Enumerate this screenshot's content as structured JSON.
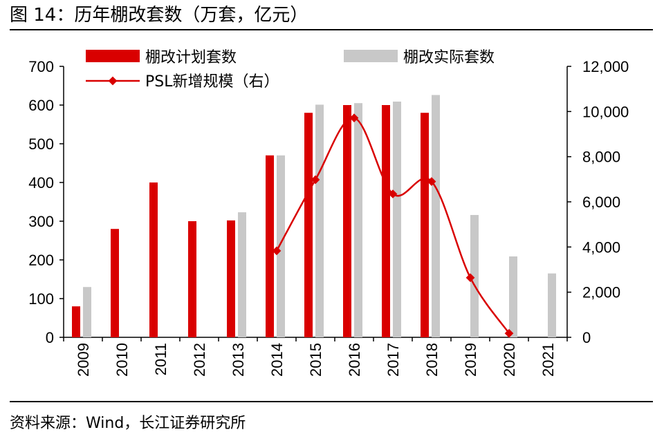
{
  "header": {
    "title": "图 14：历年棚改套数（万套，亿元）"
  },
  "footer": {
    "source": "资料来源：Wind，长江证券研究所"
  },
  "colors": {
    "plan": "#D90000",
    "actual": "#C8C8C8",
    "psl": "#D90000",
    "axis": "#000000"
  },
  "chart_data": {
    "type": "bar",
    "categories": [
      "2009",
      "2010",
      "2011",
      "2012",
      "2013",
      "2014",
      "2015",
      "2016",
      "2017",
      "2018",
      "2019",
      "2020",
      "2021"
    ],
    "series": [
      {
        "name": "棚改计划套数",
        "type": "bar",
        "axis": "left",
        "values": [
          80,
          280,
          400,
          300,
          302,
          470,
          580,
          600,
          600,
          580,
          null,
          null,
          null
        ]
      },
      {
        "name": "棚改实际套数",
        "type": "bar",
        "axis": "left",
        "values": [
          130,
          null,
          null,
          null,
          323,
          470,
          601,
          605,
          609,
          626,
          316,
          209,
          165
        ]
      },
      {
        "name": "PSL新增规模（右）",
        "type": "line",
        "axis": "right",
        "smooth": true,
        "values": [
          null,
          null,
          null,
          null,
          null,
          3831,
          6981,
          9714,
          6350,
          6900,
          2640,
          177,
          null
        ]
      }
    ],
    "y_left": {
      "lim": [
        0,
        700
      ],
      "ticks": [
        "0",
        "100",
        "200",
        "300",
        "400",
        "500",
        "600",
        "700"
      ]
    },
    "y_right": {
      "lim": [
        0,
        12000
      ],
      "ticks": [
        "0",
        "2,000",
        "4,000",
        "6,000",
        "8,000",
        "10,000",
        "12,000"
      ]
    },
    "legend": {
      "placement": "top"
    },
    "grid": false
  }
}
